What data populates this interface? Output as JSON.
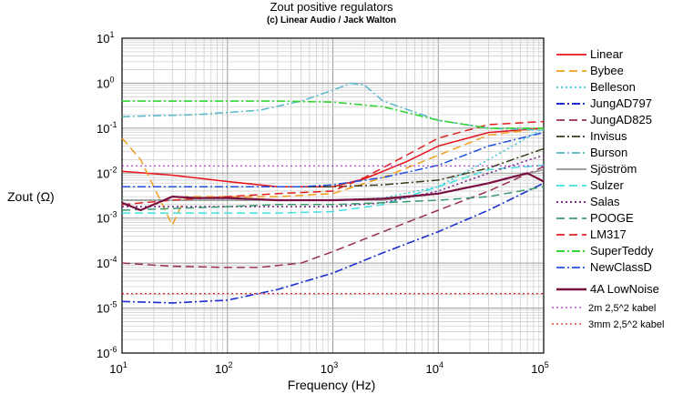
{
  "chart_data": {
    "type": "line",
    "title": "Zout positive regulators",
    "subtitle": "(c) Linear Audio / Jack Walton",
    "xlabel": "Frequency (Hz)",
    "ylabel": "Zout (Ω)",
    "xscale": "log",
    "yscale": "log",
    "xlim": [
      10,
      100000
    ],
    "ylim": [
      1e-06,
      10
    ],
    "x_ticks": [
      {
        "base": "10",
        "exp": "1"
      },
      {
        "base": "10",
        "exp": "2"
      },
      {
        "base": "10",
        "exp": "3"
      },
      {
        "base": "10",
        "exp": "4"
      },
      {
        "base": "10",
        "exp": "5"
      }
    ],
    "y_ticks": [
      {
        "base": "10",
        "exp": "1"
      },
      {
        "base": "10",
        "exp": "0"
      },
      {
        "base": "10",
        "exp": "-1"
      },
      {
        "base": "10",
        "exp": "-2"
      },
      {
        "base": "10",
        "exp": "-3"
      },
      {
        "base": "10",
        "exp": "-4"
      },
      {
        "base": "10",
        "exp": "-5"
      },
      {
        "base": "10",
        "exp": "-6"
      }
    ],
    "grid": true,
    "legend_position": "right",
    "series": [
      {
        "name": "Linear",
        "color": "#e8131b",
        "dash": "solid",
        "width": 1.5,
        "points": [
          [
            10,
            0.011
          ],
          [
            30,
            0.009
          ],
          [
            100,
            0.0065
          ],
          [
            300,
            0.005
          ],
          [
            1000,
            0.005
          ],
          [
            2000,
            0.0075
          ],
          [
            5000,
            0.018
          ],
          [
            10000,
            0.04
          ],
          [
            30000,
            0.08
          ],
          [
            100000,
            0.1
          ]
        ]
      },
      {
        "name": "Bybee",
        "color": "#f0a020",
        "dash": "long",
        "width": 1.5,
        "points": [
          [
            10,
            0.06
          ],
          [
            15,
            0.02
          ],
          [
            20,
            0.005
          ],
          [
            30,
            0.0007
          ],
          [
            40,
            0.003
          ],
          [
            100,
            0.003
          ],
          [
            300,
            0.003
          ],
          [
            1000,
            0.0035
          ],
          [
            3000,
            0.008
          ],
          [
            10000,
            0.025
          ],
          [
            30000,
            0.07
          ],
          [
            100000,
            0.1
          ]
        ]
      },
      {
        "name": "Belleson",
        "color": "#39c6d6",
        "dash": "dot",
        "width": 1.5,
        "points": [
          [
            10,
            0.0025
          ],
          [
            100,
            0.0025
          ],
          [
            1000,
            0.0025
          ],
          [
            3000,
            0.0028
          ],
          [
            10000,
            0.005
          ],
          [
            30000,
            0.02
          ],
          [
            100000,
            0.1
          ]
        ]
      },
      {
        "name": "JungAD797",
        "color": "#1c2fd0",
        "dash": "dashdot",
        "width": 1.6,
        "points": [
          [
            10,
            1.4e-05
          ],
          [
            30,
            1.3e-05
          ],
          [
            100,
            1.5e-05
          ],
          [
            300,
            2.6e-05
          ],
          [
            1000,
            6e-05
          ],
          [
            3000,
            0.00017
          ],
          [
            10000,
            0.0005
          ],
          [
            30000,
            0.0015
          ],
          [
            100000,
            0.006
          ]
        ]
      },
      {
        "name": "JungAD825",
        "color": "#9a3050",
        "dash": "long",
        "width": 1.5,
        "points": [
          [
            10,
            0.0001
          ],
          [
            30,
            8.5e-05
          ],
          [
            100,
            8e-05
          ],
          [
            200,
            8e-05
          ],
          [
            500,
            0.0001
          ],
          [
            1000,
            0.00018
          ],
          [
            3000,
            0.0005
          ],
          [
            10000,
            0.0015
          ],
          [
            30000,
            0.004
          ],
          [
            100000,
            0.014
          ]
        ]
      },
      {
        "name": "Invisus",
        "color": "#3a3a1a",
        "dash": "dashdot",
        "width": 1.5,
        "points": [
          [
            10,
            0.005
          ],
          [
            100,
            0.005
          ],
          [
            1000,
            0.005
          ],
          [
            3000,
            0.0055
          ],
          [
            10000,
            0.007
          ],
          [
            30000,
            0.013
          ],
          [
            100000,
            0.035
          ]
        ]
      },
      {
        "name": "Burson",
        "color": "#56b8c8",
        "dash": "dashdot",
        "width": 1.5,
        "points": [
          [
            10,
            0.18
          ],
          [
            50,
            0.2
          ],
          [
            200,
            0.25
          ],
          [
            500,
            0.4
          ],
          [
            1000,
            0.7
          ],
          [
            1500,
            1.0
          ],
          [
            2000,
            0.9
          ],
          [
            3000,
            0.4
          ],
          [
            10000,
            0.15
          ],
          [
            30000,
            0.1
          ],
          [
            100000,
            0.09
          ]
        ]
      },
      {
        "name": "Sjöström",
        "color": "#909090",
        "dash": "solid",
        "width": 1.5,
        "points": [
          [
            10,
            0.0025
          ],
          [
            100,
            0.0025
          ],
          [
            1000,
            0.0025
          ],
          [
            3000,
            0.0025
          ],
          [
            10000,
            0.0035
          ],
          [
            30000,
            0.006
          ],
          [
            100000,
            0.012
          ]
        ]
      },
      {
        "name": "Sulzer",
        "color": "#40e0e0",
        "dash": "long",
        "width": 1.5,
        "points": [
          [
            10,
            0.0013
          ],
          [
            100,
            0.0013
          ],
          [
            300,
            0.0013
          ],
          [
            1000,
            0.0014
          ],
          [
            3000,
            0.002
          ],
          [
            10000,
            0.005
          ],
          [
            30000,
            0.012
          ],
          [
            100000,
            0.015
          ]
        ]
      },
      {
        "name": "Salas",
        "color": "#7a2a8a",
        "dash": "dot",
        "width": 1.6,
        "points": [
          [
            10,
            0.0018
          ],
          [
            100,
            0.0018
          ],
          [
            1000,
            0.0018
          ],
          [
            3000,
            0.0022
          ],
          [
            10000,
            0.004
          ],
          [
            30000,
            0.01
          ],
          [
            100000,
            0.025
          ]
        ]
      },
      {
        "name": "POOGE",
        "color": "#3a9a70",
        "dash": "long",
        "width": 1.5,
        "points": [
          [
            10,
            0.0015
          ],
          [
            100,
            0.0018
          ],
          [
            300,
            0.002
          ],
          [
            1000,
            0.002
          ],
          [
            3000,
            0.0022
          ],
          [
            10000,
            0.0025
          ],
          [
            30000,
            0.003
          ],
          [
            100000,
            0.005
          ]
        ]
      },
      {
        "name": "LM317",
        "color": "#e02020",
        "dash": "long",
        "width": 1.5,
        "points": [
          [
            10,
            0.002
          ],
          [
            30,
            0.0025
          ],
          [
            100,
            0.003
          ],
          [
            300,
            0.0035
          ],
          [
            1000,
            0.004
          ],
          [
            2000,
            0.008
          ],
          [
            5000,
            0.025
          ],
          [
            10000,
            0.06
          ],
          [
            30000,
            0.12
          ],
          [
            100000,
            0.14
          ]
        ]
      },
      {
        "name": "SuperTeddy",
        "color": "#33d633",
        "dash": "dashdot",
        "width": 1.6,
        "points": [
          [
            10,
            0.4
          ],
          [
            100,
            0.4
          ],
          [
            300,
            0.4
          ],
          [
            1000,
            0.38
          ],
          [
            3000,
            0.3
          ],
          [
            10000,
            0.15
          ],
          [
            30000,
            0.1
          ],
          [
            100000,
            0.1
          ]
        ]
      },
      {
        "name": "NewClassD",
        "color": "#2050e0",
        "dash": "dashdot",
        "width": 1.5,
        "points": [
          [
            10,
            0.005
          ],
          [
            100,
            0.005
          ],
          [
            500,
            0.005
          ],
          [
            1000,
            0.0055
          ],
          [
            3000,
            0.008
          ],
          [
            10000,
            0.015
          ],
          [
            30000,
            0.04
          ],
          [
            100000,
            0.08
          ]
        ]
      },
      {
        "name": "4A LowNoise",
        "color": "#7a1040",
        "dash": "solid",
        "width": 2.2,
        "points": [
          [
            10,
            0.0022
          ],
          [
            15,
            0.0015
          ],
          [
            20,
            0.002
          ],
          [
            30,
            0.003
          ],
          [
            50,
            0.0028
          ],
          [
            100,
            0.0028
          ],
          [
            300,
            0.0025
          ],
          [
            1000,
            0.0025
          ],
          [
            3000,
            0.0027
          ],
          [
            10000,
            0.0035
          ],
          [
            30000,
            0.006
          ],
          [
            70000,
            0.01
          ],
          [
            100000,
            0.0065
          ]
        ]
      },
      {
        "name": "2m 2,5^2 kabel",
        "color": "#b030d0",
        "dash": "dot",
        "width": 1.2,
        "points": [
          [
            10,
            0.0145
          ],
          [
            100000,
            0.0145
          ]
        ]
      },
      {
        "name": "3mm 2,5^2 kabel",
        "color": "#e02020",
        "dash": "dot",
        "width": 1.2,
        "points": [
          [
            10,
            2.1e-05
          ],
          [
            100000,
            2.1e-05
          ]
        ]
      }
    ]
  }
}
